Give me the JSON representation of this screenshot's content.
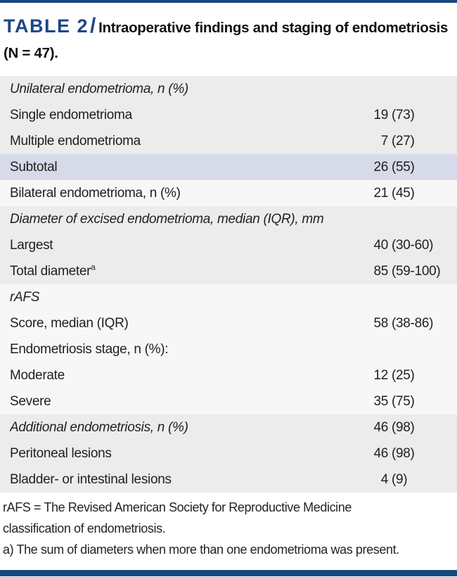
{
  "header": {
    "table_label": "TABLE 2",
    "separator": "/",
    "title": "Intraoperative findings and staging of endometriosis (N = 47)."
  },
  "table": {
    "rows": [
      {
        "label": "Unilateral endometrioma, n (%)",
        "sup": "",
        "n": "",
        "p": "",
        "bg": "gray",
        "italic": true
      },
      {
        "label": "Single endometrioma",
        "sup": "",
        "n": "19",
        "p": "(73)",
        "bg": "gray",
        "italic": false
      },
      {
        "label": "Multiple endometrioma",
        "sup": "",
        "n": "7",
        "p": "(27)",
        "bg": "gray",
        "italic": false
      },
      {
        "label": "Subtotal",
        "sup": "",
        "n": "26",
        "p": "(55)",
        "bg": "blue",
        "italic": false
      },
      {
        "label": "Bilateral endometrioma, n (%)",
        "sup": "",
        "n": "21",
        "p": "(45)",
        "bg": "white",
        "italic": false
      },
      {
        "label": "Diameter of excised endometrioma, median (IQR), mm",
        "sup": "",
        "n": "",
        "p": "",
        "bg": "gray",
        "italic": true
      },
      {
        "label": "Largest",
        "sup": "",
        "n": "40",
        "p": "(30-60)",
        "bg": "gray",
        "italic": false
      },
      {
        "label": "Total diameter",
        "sup": "a",
        "n": "85",
        "p": "(59-100)",
        "bg": "gray",
        "italic": false
      },
      {
        "label": "rAFS",
        "sup": "",
        "n": "",
        "p": "",
        "bg": "white",
        "italic": true
      },
      {
        "label": "Score, median (IQR)",
        "sup": "",
        "n": "58",
        "p": "(38-86)",
        "bg": "white",
        "italic": false
      },
      {
        "label": "Endometriosis stage, n (%):",
        "sup": "",
        "n": "",
        "p": "",
        "bg": "white",
        "italic": false
      },
      {
        "label": "Moderate",
        "sup": "",
        "n": "12",
        "p": "(25)",
        "bg": "white",
        "italic": false
      },
      {
        "label": "Severe",
        "sup": "",
        "n": "35",
        "p": "(75)",
        "bg": "white",
        "italic": false
      },
      {
        "label": "Additional endometriosis, n (%)",
        "sup": "",
        "n": "46",
        "p": "(98)",
        "bg": "gray",
        "italic": true
      },
      {
        "label": "Peritoneal lesions",
        "sup": "",
        "n": "46",
        "p": "(98)",
        "bg": "gray",
        "italic": false
      },
      {
        "label": "Bladder- or intestinal lesions",
        "sup": "",
        "n": "4",
        "p": "(9)",
        "bg": "gray",
        "italic": false
      }
    ]
  },
  "footnotes": {
    "abbreviation": "rAFS = The Revised American Society for Reproductive Medicine classification of endometriosis.",
    "note_a": "a) The sum of diameters when more than one endometrioma was present."
  },
  "colors": {
    "accent_blue": "#1d4687",
    "bar_navy_top": "#17497c",
    "bar_navy_bottom": "#134a7e",
    "row_gray": "#ececec",
    "row_white": "#f7f7f8",
    "row_highlight_blue": "#d7dae8",
    "text": "#1f1f1f"
  }
}
